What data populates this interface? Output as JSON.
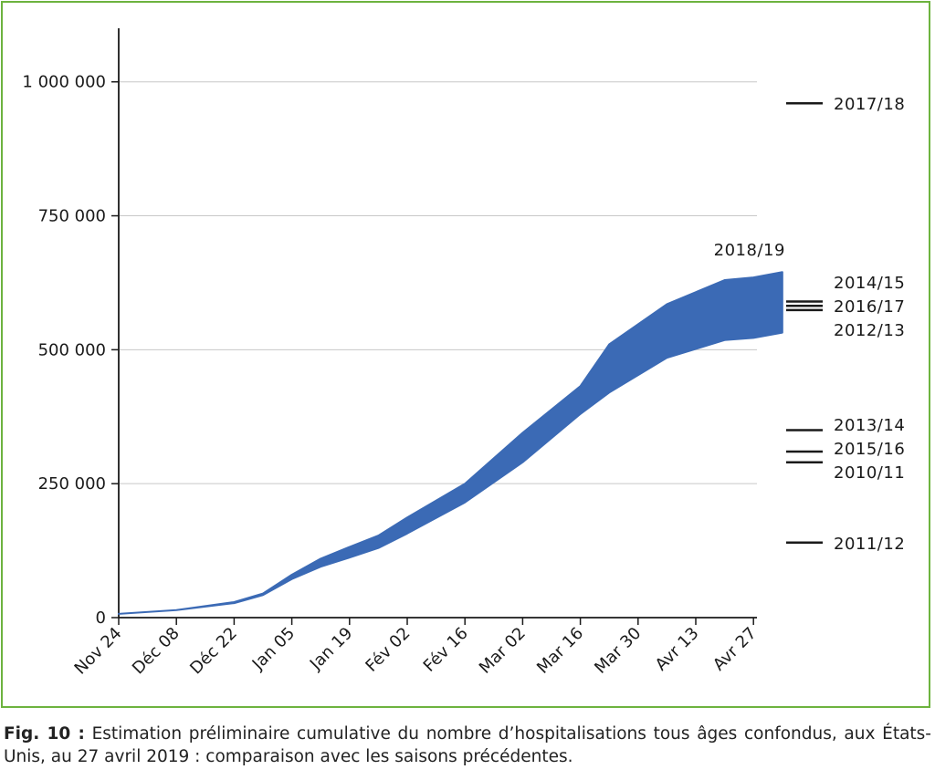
{
  "chart_data": {
    "type": "area",
    "x_ticks": [
      "Nov 24",
      "Déc 08",
      "Déc 22",
      "Jan 05",
      "Jan 19",
      "Fév 02",
      "Fév 16",
      "Mar 02",
      "Mar 16",
      "Mar 30",
      "Avr 13",
      "Avr 27"
    ],
    "y_ticks": [
      {
        "value": 0,
        "label": "0"
      },
      {
        "value": 250000,
        "label": "250 000"
      },
      {
        "value": 500000,
        "label": "500 000"
      },
      {
        "value": 750000,
        "label": "750 000"
      },
      {
        "value": 1000000,
        "label": "1 000 000"
      }
    ],
    "ylim": [
      0,
      1100000
    ],
    "grid": "horizontal",
    "band": {
      "name": "2018/19",
      "color": "#3b6ab5",
      "points": [
        {
          "x": "Nov 24",
          "low": 7000,
          "high": 7000
        },
        {
          "x": "Déc 08",
          "low": 14000,
          "high": 14000
        },
        {
          "x": "Déc 22",
          "low": 27000,
          "high": 29000
        },
        {
          "x": "Déc 29",
          "low": 42000,
          "high": 45000
        },
        {
          "x": "Jan 05",
          "low": 72000,
          "high": 80000
        },
        {
          "x": "Jan 12",
          "low": 95000,
          "high": 110000
        },
        {
          "x": "Jan 19",
          "low": 112000,
          "high": 132000
        },
        {
          "x": "Jan 26",
          "low": 130000,
          "high": 153000
        },
        {
          "x": "Fév 02",
          "low": 157000,
          "high": 187000
        },
        {
          "x": "Fév 16",
          "low": 215000,
          "high": 250000
        },
        {
          "x": "Mar 02",
          "low": 290000,
          "high": 345000
        },
        {
          "x": "Mar 16",
          "low": 380000,
          "high": 432000
        },
        {
          "x": "Mar 23",
          "low": 420000,
          "high": 510000
        },
        {
          "x": "Apr 06",
          "low": 485000,
          "high": 585000
        },
        {
          "x": "Avr 20",
          "low": 518000,
          "high": 630000
        },
        {
          "x": "Avr 27",
          "low": 522000,
          "high": 635000
        },
        {
          "x": "Mai 04",
          "low": 532000,
          "high": 645000
        }
      ]
    },
    "prior_seasons": [
      {
        "name": "2017/18",
        "value": 960000
      },
      {
        "name": "2014/15",
        "value": 590000
      },
      {
        "name": "2016/17",
        "value": 582000
      },
      {
        "name": "2012/13",
        "value": 574000
      },
      {
        "name": "2013/14",
        "value": 350000
      },
      {
        "name": "2015/16",
        "value": 310000
      },
      {
        "name": "2010/11",
        "value": 290000
      },
      {
        "name": "2011/12",
        "value": 140000
      }
    ]
  },
  "caption": {
    "label": "Fig. 10 :",
    "text": "Estimation préliminaire cumulative du nombre d’hospitalisations tous âges confondus, aux États-Unis, au 27 avril 2019 : comparaison avec les saisons précédentes."
  }
}
